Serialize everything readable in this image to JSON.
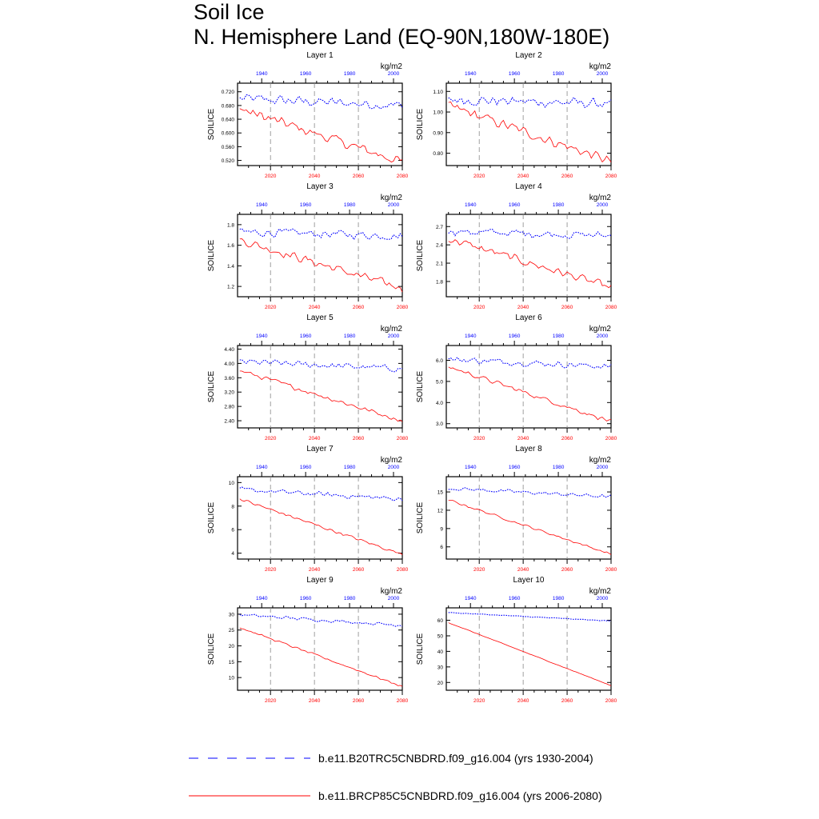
{
  "title": "Soil Ice",
  "subtitle": "N. Hemisphere Land (EQ-90N,180W-180E)",
  "legend": [
    {
      "label": "b.e11.B20TRC5CNBDRD.f09_g16.004 (yrs 1930-2004)",
      "color": "#0000ff",
      "style": "dashed"
    },
    {
      "label": "b.e11.BRCP85C5CNBDRD.f09_g16.004 (yrs 2006-2080)",
      "color": "#ff0000",
      "style": "solid"
    }
  ],
  "colors": {
    "historical": "#0000ff",
    "future": "#ff0000"
  },
  "chart_data": [
    {
      "type": "line",
      "title": "Layer 1",
      "ylabel": "SOILICE",
      "units": "kg/m2",
      "ylim": [
        0.505,
        0.745
      ],
      "yticks": [
        0.52,
        0.56,
        0.6,
        0.64,
        0.68,
        0.72
      ],
      "ytick_labels": [
        "0.520",
        "0.560",
        "0.600",
        "0.640",
        "0.680",
        "0.720"
      ],
      "top_xticks": [
        "1940",
        "1960",
        "1980",
        "2000"
      ],
      "bottom_xticks": [
        "2020",
        "2040",
        "2060",
        "2080"
      ],
      "series": [
        {
          "years": "1930-2004",
          "start": 0.7,
          "end": 0.68,
          "noise": 0.018,
          "color": "#0000ff",
          "dashed": true
        },
        {
          "years": "2006-2080",
          "start": 0.67,
          "end": 0.515,
          "noise": 0.018,
          "color": "#ff0000",
          "dashed": false
        }
      ]
    },
    {
      "type": "line",
      "title": "Layer 2",
      "ylabel": "SOILICE",
      "units": "kg/m2",
      "ylim": [
        0.74,
        1.14
      ],
      "yticks": [
        0.8,
        0.9,
        1.0,
        1.1
      ],
      "ytick_labels": [
        "0.80",
        "0.90",
        "1.00",
        "1.10"
      ],
      "top_xticks": [
        "1940",
        "1960",
        "1980",
        "2000"
      ],
      "bottom_xticks": [
        "2020",
        "2040",
        "2060",
        "2080"
      ],
      "series": [
        {
          "years": "1930-2004",
          "start": 1.06,
          "end": 1.04,
          "noise": 0.03,
          "color": "#0000ff",
          "dashed": true
        },
        {
          "years": "2006-2080",
          "start": 1.03,
          "end": 0.76,
          "noise": 0.03,
          "color": "#ff0000",
          "dashed": false
        }
      ]
    },
    {
      "type": "line",
      "title": "Layer 3",
      "ylabel": "SOILICE",
      "units": "kg/m2",
      "ylim": [
        1.1,
        1.9
      ],
      "yticks": [
        1.2,
        1.4,
        1.6,
        1.8
      ],
      "ytick_labels": [
        "1.2",
        "1.4",
        "1.6",
        "1.8"
      ],
      "top_xticks": [
        "1940",
        "1960",
        "1980",
        "2000"
      ],
      "bottom_xticks": [
        "2020",
        "2040",
        "2060",
        "2080"
      ],
      "series": [
        {
          "years": "1930-2004",
          "start": 1.73,
          "end": 1.69,
          "noise": 0.05,
          "color": "#0000ff",
          "dashed": true
        },
        {
          "years": "2006-2080",
          "start": 1.65,
          "end": 1.18,
          "noise": 0.05,
          "color": "#ff0000",
          "dashed": false
        }
      ]
    },
    {
      "type": "line",
      "title": "Layer 4",
      "ylabel": "SOILICE",
      "units": "kg/m2",
      "ylim": [
        1.55,
        2.9
      ],
      "yticks": [
        1.8,
        2.1,
        2.4,
        2.7
      ],
      "ytick_labels": [
        "1.8",
        "2.1",
        "2.4",
        "2.7"
      ],
      "top_xticks": [
        "1940",
        "1960",
        "1980",
        "2000"
      ],
      "bottom_xticks": [
        "2020",
        "2040",
        "2060",
        "2080"
      ],
      "series": [
        {
          "years": "1930-2004",
          "start": 2.62,
          "end": 2.55,
          "noise": 0.08,
          "color": "#0000ff",
          "dashed": true
        },
        {
          "years": "2006-2080",
          "start": 2.5,
          "end": 1.7,
          "noise": 0.08,
          "color": "#ff0000",
          "dashed": false
        }
      ]
    },
    {
      "type": "line",
      "title": "Layer 5",
      "ylabel": "SOILICE",
      "units": "kg/m2",
      "ylim": [
        2.2,
        4.5
      ],
      "yticks": [
        2.4,
        2.8,
        3.2,
        3.6,
        4.0,
        4.4
      ],
      "ytick_labels": [
        "2.40",
        "2.80",
        "3.20",
        "3.60",
        "4.00",
        "4.40"
      ],
      "top_xticks": [
        "1940",
        "1960",
        "1980",
        "2000"
      ],
      "bottom_xticks": [
        "2020",
        "2040",
        "2060",
        "2080"
      ],
      "series": [
        {
          "years": "1930-2004",
          "start": 4.05,
          "end": 3.85,
          "noise": 0.11,
          "color": "#0000ff",
          "dashed": true
        },
        {
          "years": "2006-2080",
          "start": 3.8,
          "end": 2.4,
          "noise": 0.08,
          "color": "#ff0000",
          "dashed": false
        }
      ]
    },
    {
      "type": "line",
      "title": "Layer 6",
      "ylabel": "SOILICE",
      "units": "kg/m2",
      "ylim": [
        2.8,
        6.7
      ],
      "yticks": [
        3.0,
        4.0,
        5.0,
        6.0
      ],
      "ytick_labels": [
        "3.0",
        "4.0",
        "5.0",
        "6.0"
      ],
      "top_xticks": [
        "1940",
        "1960",
        "1980",
        "2000"
      ],
      "bottom_xticks": [
        "2020",
        "2040",
        "2060",
        "2080"
      ],
      "series": [
        {
          "years": "1930-2004",
          "start": 6.05,
          "end": 5.7,
          "noise": 0.18,
          "color": "#0000ff",
          "dashed": true
        },
        {
          "years": "2006-2080",
          "start": 5.7,
          "end": 3.1,
          "noise": 0.13,
          "color": "#ff0000",
          "dashed": false
        }
      ]
    },
    {
      "type": "line",
      "title": "Layer 7",
      "ylabel": "SOILICE",
      "units": "kg/m2",
      "ylim": [
        3.5,
        10.5
      ],
      "yticks": [
        4,
        6,
        8,
        10
      ],
      "ytick_labels": [
        "4",
        "6",
        "8",
        "10"
      ],
      "top_xticks": [
        "1940",
        "1960",
        "1980",
        "2000"
      ],
      "bottom_xticks": [
        "2020",
        "2040",
        "2060",
        "2080"
      ],
      "series": [
        {
          "years": "1930-2004",
          "start": 9.4,
          "end": 8.6,
          "noise": 0.25,
          "color": "#0000ff",
          "dashed": true
        },
        {
          "years": "2006-2080",
          "start": 8.6,
          "end": 3.9,
          "noise": 0.15,
          "color": "#ff0000",
          "dashed": false
        }
      ]
    },
    {
      "type": "line",
      "title": "Layer 8",
      "ylabel": "SOILICE",
      "units": "kg/m2",
      "ylim": [
        4.0,
        17.5
      ],
      "yticks": [
        6,
        9,
        12,
        15
      ],
      "ytick_labels": [
        "6",
        "9",
        "12",
        "15"
      ],
      "top_xticks": [
        "1940",
        "1960",
        "1980",
        "2000"
      ],
      "bottom_xticks": [
        "2020",
        "2040",
        "2060",
        "2080"
      ],
      "series": [
        {
          "years": "1930-2004",
          "start": 15.6,
          "end": 14.2,
          "noise": 0.35,
          "color": "#0000ff",
          "dashed": true
        },
        {
          "years": "2006-2080",
          "start": 13.7,
          "end": 4.8,
          "noise": 0.22,
          "color": "#ff0000",
          "dashed": false
        }
      ]
    },
    {
      "type": "line",
      "title": "Layer 9",
      "ylabel": "SOILICE",
      "units": "kg/m2",
      "ylim": [
        6,
        32
      ],
      "yticks": [
        10,
        15,
        20,
        25,
        30
      ],
      "ytick_labels": [
        "10",
        "15",
        "20",
        "25",
        "30"
      ],
      "top_xticks": [
        "1940",
        "1960",
        "1980",
        "2000"
      ],
      "bottom_xticks": [
        "2020",
        "2040",
        "2060",
        "2080"
      ],
      "series": [
        {
          "years": "1930-2004",
          "start": 29.8,
          "end": 26.5,
          "noise": 0.6,
          "color": "#0000ff",
          "dashed": true
        },
        {
          "years": "2006-2080",
          "start": 25.8,
          "end": 7.2,
          "noise": 0.4,
          "color": "#ff0000",
          "dashed": false
        }
      ]
    },
    {
      "type": "line",
      "title": "Layer 10",
      "ylabel": "SOILICE",
      "units": "kg/m2",
      "ylim": [
        15,
        68
      ],
      "yticks": [
        20,
        30,
        40,
        50,
        60
      ],
      "ytick_labels": [
        "20",
        "30",
        "40",
        "50",
        "60"
      ],
      "top_xticks": [
        "1940",
        "1960",
        "1980",
        "2000"
      ],
      "bottom_xticks": [
        "2020",
        "2040",
        "2060",
        "2080"
      ],
      "series": [
        {
          "years": "1930-2004",
          "start": 65.0,
          "end": 59.5,
          "noise": 0.3,
          "color": "#0000ff",
          "dashed": true
        },
        {
          "years": "2006-2080",
          "start": 58.5,
          "end": 18.0,
          "noise": 0.2,
          "color": "#ff0000",
          "dashed": false
        }
      ]
    }
  ]
}
